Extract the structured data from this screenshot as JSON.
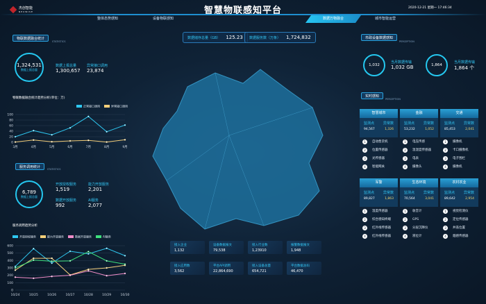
{
  "header": {
    "logo_cn": "杰创智能",
    "logo_en": "NEXWISE",
    "title": "智慧物联感知平台",
    "datetime": "2020-12-21 星期一 17:46:34",
    "tabs": [
      {
        "label": "整体态势感知"
      },
      {
        "label": "设备物联感知"
      },
      {
        "label": "数据万物融合",
        "active": true
      },
      {
        "label": "城市智能运营"
      }
    ]
  },
  "left": {
    "sec1": {
      "title": "物联数据融合统计",
      "sub": "STATISTICS",
      "ring_value": "1,324,531",
      "ring_label": "数据上报总量",
      "s1_label": "数据上报总量",
      "s1_value": "1,300,657",
      "s2_label": "异常接口调用",
      "s2_value": "23,874"
    },
    "chart1_title": "物联数据融合统计趋势分析(单位：万)",
    "sec2": {
      "title": "服务调用统计",
      "sub": "STATISTICS",
      "ring_value": "6,789",
      "ring_label": "数据上报总量",
      "items": [
        {
          "label": "开放授权服务",
          "value": "1,519"
        },
        {
          "label": "能力开放服务",
          "value": "2,201"
        },
        {
          "label": "数据开放服务",
          "value": "992"
        },
        {
          "label": "AI服务",
          "value": "2,077"
        }
      ]
    },
    "chart2_title": "服务调用趋势分析"
  },
  "center": {
    "top": [
      {
        "label": "数据储存总量（GB）",
        "value": "125.23"
      },
      {
        "label": "数据服务数（万条）",
        "value": "1,724,832"
      }
    ],
    "stats": [
      {
        "label": "接入企业",
        "value": "1,132"
      },
      {
        "label": "设备数据报文",
        "value": "79,538"
      },
      {
        "label": "接入行业数",
        "value": "1,23910"
      },
      {
        "label": "报警数据报文",
        "value": "1,948"
      },
      {
        "label": "接入应用数",
        "value": "3,562"
      },
      {
        "label": "平台API调用",
        "value": "22,864,690"
      },
      {
        "label": "接入设备总量",
        "value": "654,721"
      },
      {
        "label": "平台数据总码",
        "value": "46,470"
      }
    ]
  },
  "right": {
    "sec1": {
      "title": "市政设备数据感知",
      "sub": "PERCEPTION",
      "rings": [
        {
          "value": "1,032",
          "label": "当月数据传输",
          "detail": "1,032 GB"
        },
        {
          "value": "1,864",
          "label": "当月数据传输",
          "detail": "1,864 个"
        }
      ]
    },
    "sec2": {
      "title": "实时感知",
      "sub": "PERCEPTION"
    },
    "col_labels": {
      "a": "监测点",
      "b": "异常数"
    },
    "cards": [
      {
        "title": "智慧城市",
        "a": "94,567",
        "b": "1,326",
        "items": [
          "自动售货机",
          "位置传感器",
          "光传感器",
          "智能网关"
        ]
      },
      {
        "title": "金融",
        "a": "53,232",
        "b": "1,052",
        "items": [
          "电压传感",
          "温湿度传感器",
          "电表",
          "摄像头"
        ]
      },
      {
        "title": "交通",
        "a": "85,453",
        "b": "2,041",
        "items": [
          "摄像机",
          "卡口摄像机",
          "电子围栏",
          "摄像机"
        ]
      },
      {
        "title": "军警",
        "a": "89,827",
        "b": "1,863",
        "items": [
          "温度传感器",
          "综合感知终端",
          "红外线传感器",
          "红外线传感器"
        ]
      },
      {
        "title": "生态环境",
        "a": "70,564",
        "b": "3,041",
        "items": [
          "收音计",
          "GPS",
          "分层沉降仪",
          "液位计"
        ]
      },
      {
        "title": "农村农业",
        "a": "89,642",
        "b": "2,954",
        "items": [
          "视觉检测仪",
          "定位传感器",
          "井盖位置",
          "烟感传感器"
        ]
      }
    ]
  },
  "chart_data": [
    {
      "type": "line",
      "title": "物联数据融合统计趋势分析(单位：万)",
      "categories": [
        "3月",
        "4月",
        "5月",
        "6月",
        "7月",
        "8月",
        "9月"
      ],
      "ylim": [
        0,
        100
      ],
      "yticks": [
        0,
        20,
        40,
        60,
        80,
        100
      ],
      "legend": "top-right",
      "series": [
        {
          "name": "正常接口调用",
          "color": "#2ec7f0",
          "values": [
            20,
            42,
            27,
            52,
            93,
            38,
            62
          ]
        },
        {
          "name": "异常接口调用",
          "color": "#f5cf7a",
          "values": [
            1,
            8,
            2,
            5,
            7,
            1,
            9
          ]
        }
      ]
    },
    {
      "type": "line",
      "title": "服务调用趋势分析",
      "categories": [
        "10/24",
        "10/25",
        "10/26",
        "10/27",
        "10/28",
        "10/29",
        "10/30"
      ],
      "ylim": [
        0,
        600
      ],
      "yticks": [
        0,
        100,
        200,
        300,
        400,
        500,
        600
      ],
      "legend": "top",
      "series": [
        {
          "name": "开放授权服务",
          "color": "#2ec7f0",
          "values": [
            320,
            560,
            365,
            525,
            490,
            565,
            465
          ]
        },
        {
          "name": "能力开放服务",
          "color": "#f5cf7a",
          "values": [
            270,
            430,
            430,
            205,
            280,
            300,
            335
          ]
        },
        {
          "name": "数据开放服务",
          "color": "#f08cc8",
          "values": [
            175,
            160,
            185,
            200,
            260,
            195,
            225
          ]
        },
        {
          "name": "AI服务",
          "color": "#3ee07d",
          "values": [
            300,
            405,
            390,
            395,
            520,
            395,
            350
          ]
        }
      ]
    }
  ]
}
